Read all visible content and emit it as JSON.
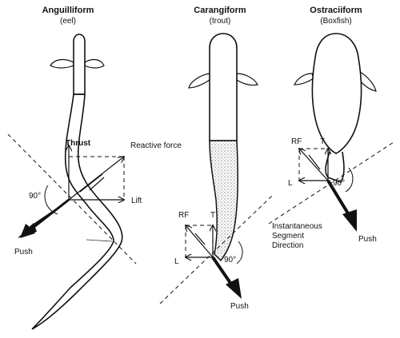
{
  "panels": [
    {
      "title": "Anguilliform",
      "subtitle": "(eel)",
      "labels": {
        "thrust": "Thrust",
        "reactive_force": "Reactive force",
        "lift": "Lift",
        "angle": "90°",
        "push": "Push"
      }
    },
    {
      "title": "Carangiform",
      "subtitle": "(trout)",
      "labels": {
        "rf": "RF",
        "t": "T",
        "l": "L",
        "angle": "90°",
        "push": "Push",
        "segment_line1": "Instantaneous",
        "segment_line2": "Segment",
        "segment_line3": "Direction"
      }
    },
    {
      "title": "Ostraciiform",
      "subtitle": "(Boxfish)",
      "labels": {
        "rf": "RF",
        "t": "T",
        "l": "L",
        "angle": "90°",
        "push": "Push"
      }
    }
  ]
}
